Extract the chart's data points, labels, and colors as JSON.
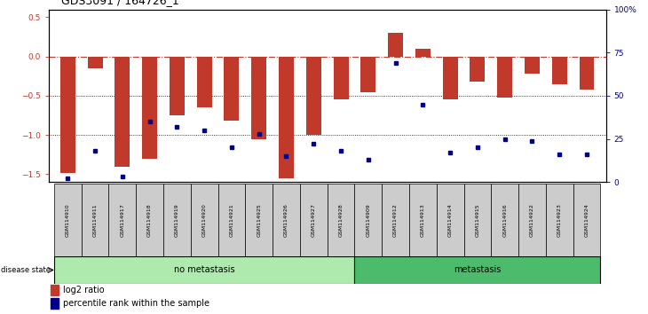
{
  "title": "GDS3091 / 164726_1",
  "samples": [
    "GSM114910",
    "GSM114911",
    "GSM114917",
    "GSM114918",
    "GSM114919",
    "GSM114920",
    "GSM114921",
    "GSM114925",
    "GSM114926",
    "GSM114927",
    "GSM114928",
    "GSM114909",
    "GSM114912",
    "GSM114913",
    "GSM114914",
    "GSM114915",
    "GSM114916",
    "GSM114922",
    "GSM114923",
    "GSM114924"
  ],
  "log2_ratio": [
    -1.48,
    -0.15,
    -1.4,
    -1.3,
    -0.75,
    -0.65,
    -0.82,
    -1.05,
    -1.55,
    -1.0,
    -0.55,
    -0.45,
    0.3,
    0.1,
    -0.55,
    -0.32,
    -0.52,
    -0.22,
    -0.35,
    -0.42
  ],
  "percentile": [
    2,
    18,
    3,
    35,
    32,
    30,
    20,
    28,
    15,
    22,
    18,
    13,
    69,
    45,
    17,
    20,
    25,
    24,
    16,
    16
  ],
  "no_metastasis_count": 11,
  "metastasis_count": 9,
  "bar_color": "#C0392B",
  "dot_color": "#00008B",
  "bg_color": "#FFFFFF",
  "plot_bg": "#FFFFFF",
  "ylim_left": [
    -1.6,
    0.6
  ],
  "ylim_right": [
    0,
    100
  ],
  "yticks_left": [
    -1.5,
    -1.0,
    -0.5,
    0.0,
    0.5
  ],
  "yticks_right": [
    0,
    25,
    50,
    75,
    100
  ],
  "ytick_labels_right": [
    "0",
    "25",
    "50",
    "75",
    "100%"
  ],
  "hline_color": "#C0392B",
  "grid_color": "black",
  "no_meta_color": "#AEEAAE",
  "meta_color": "#4CBB6C",
  "sample_box_color": "#CCCCCC",
  "tick_fontsize": 6.5,
  "title_fontsize": 9,
  "sample_fontsize": 4.5,
  "group_fontsize": 7,
  "legend_fontsize": 7
}
